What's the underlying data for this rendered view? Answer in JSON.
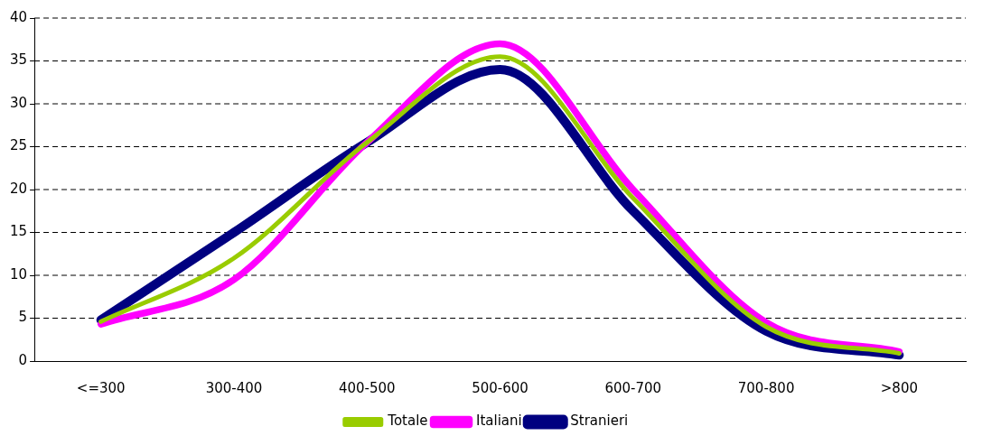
{
  "chart_data": {
    "type": "line",
    "categories": [
      "<=300",
      "300-400",
      "400-500",
      "500-600",
      "600-700",
      "700-800",
      ">800"
    ],
    "series": [
      {
        "name": "Stranieri",
        "color": "#000080",
        "values": [
          4.8,
          15,
          25.5,
          34,
          17.5,
          3.5,
          0.7
        ]
      },
      {
        "name": "Italiani",
        "color": "#ff00ff",
        "values": [
          4.3,
          9.5,
          25.5,
          37,
          20,
          4.5,
          1.1
        ]
      },
      {
        "name": "Totale",
        "color": "#99cc00",
        "values": [
          4.6,
          12,
          25.5,
          35.5,
          19,
          4,
          0.9
        ]
      }
    ],
    "ylim": [
      0,
      40
    ],
    "yticks": [
      0,
      5,
      10,
      15,
      20,
      25,
      30,
      35,
      40
    ],
    "grid": "y",
    "legend": "bottom",
    "marker": "none",
    "line_style": "solid"
  }
}
